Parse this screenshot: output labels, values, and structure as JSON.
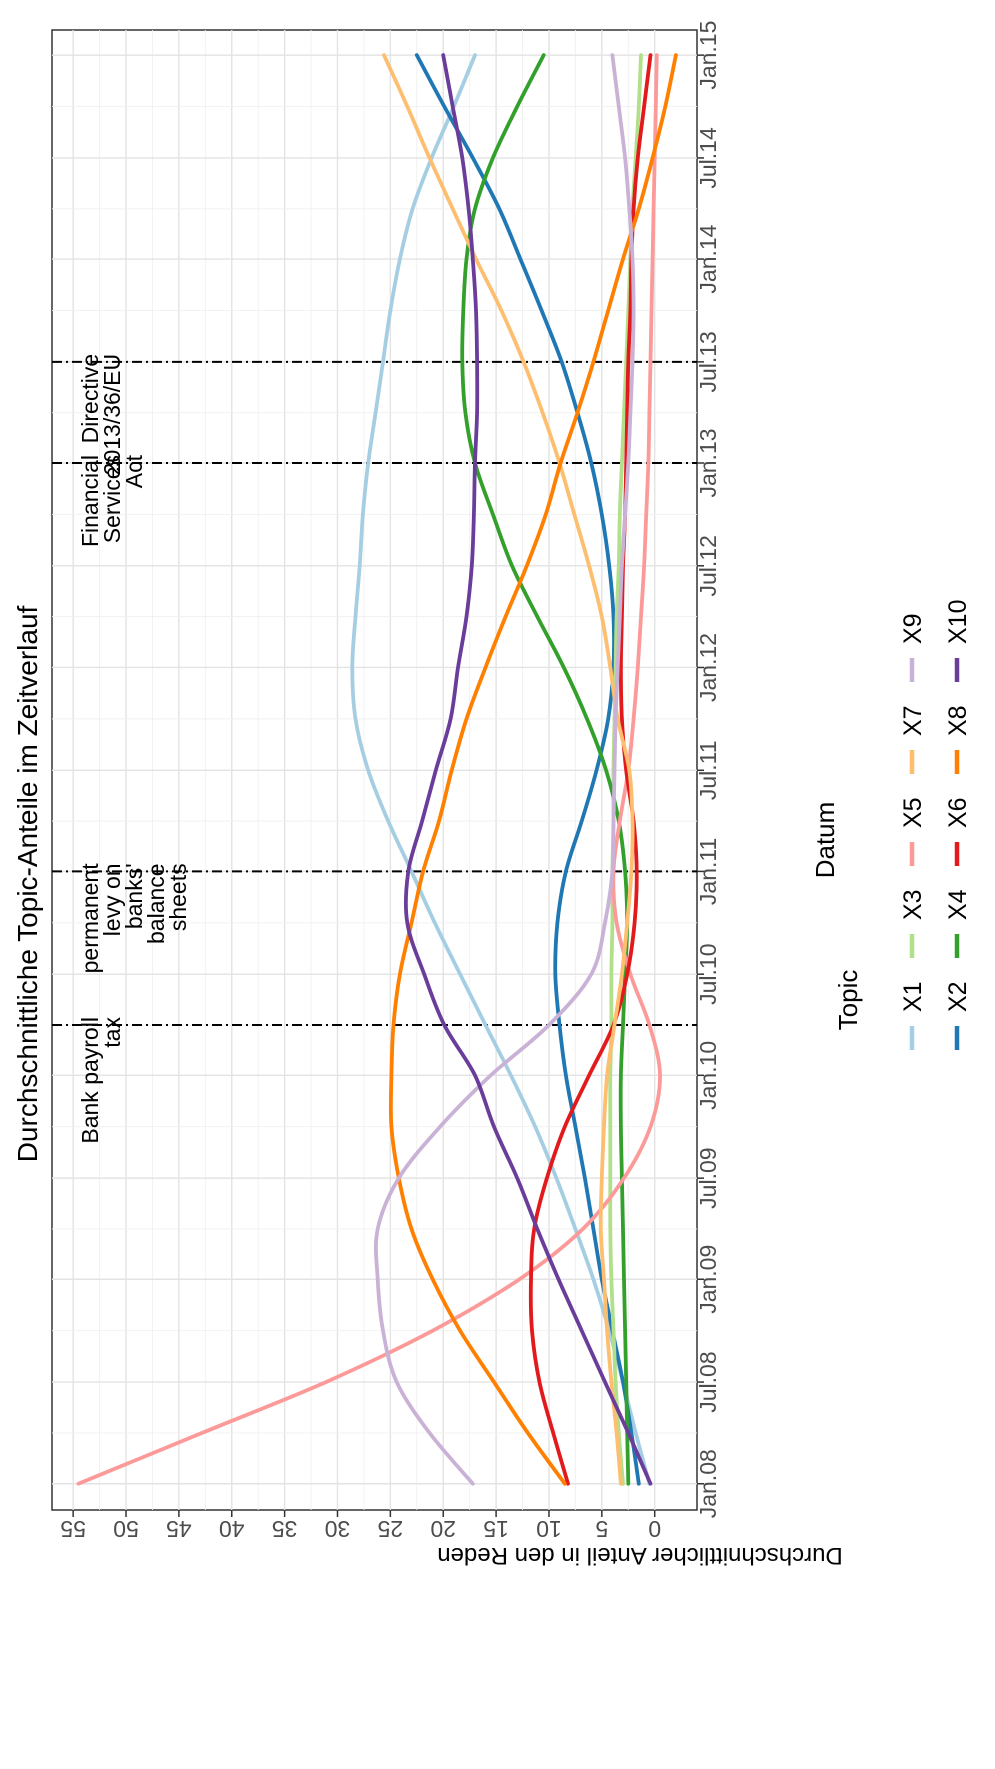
{
  "chart_data": {
    "type": "line",
    "title": "Durchschnittliche Topic-Anteile im Zeitverlauf",
    "xlabel": "Datum",
    "ylabel": "Durchschnittlicher Anteil in den Reden",
    "xlim": [
      "2007-11-15",
      "2015-02-15"
    ],
    "ylim": [
      -4,
      57
    ],
    "y_ticks": [
      0,
      5,
      10,
      15,
      20,
      25,
      30,
      35,
      40,
      45,
      50,
      55
    ],
    "y_tick_labels": [
      "0",
      "5",
      "10",
      "15",
      "20",
      "25",
      "30",
      "35",
      "40",
      "45",
      "50",
      "55"
    ],
    "x_ticks": [
      "2008-01-01",
      "2008-07-01",
      "2009-01-01",
      "2009-07-01",
      "2010-01-01",
      "2010-07-01",
      "2011-01-01",
      "2011-07-01",
      "2012-01-01",
      "2012-07-01",
      "2013-01-01",
      "2013-07-01",
      "2014-01-01",
      "2014-07-01",
      "2015-01-01"
    ],
    "x_tick_labels": [
      "Jan.08",
      "Jul.08",
      "Jan.09",
      "Jul.09",
      "Jan.10",
      "Jul.10",
      "Jan.11",
      "Jul.11",
      "Jan.12",
      "Jul.12",
      "Jan.13",
      "Jul.13",
      "Jan.14",
      "Jul.14",
      "Jan.15"
    ],
    "grid": true,
    "orientation": "rotated 90 degrees counter-clockwise",
    "legend": {
      "title": "Topic",
      "placement": "bottom",
      "items": [
        {
          "label": "X1",
          "color": "#a6cee3"
        },
        {
          "label": "X2",
          "color": "#1f78b4"
        },
        {
          "label": "X3",
          "color": "#b2df8a"
        },
        {
          "label": "X4",
          "color": "#33a02c"
        },
        {
          "label": "X5",
          "color": "#fb9a99"
        },
        {
          "label": "X6",
          "color": "#e31a1c"
        },
        {
          "label": "X7",
          "color": "#fdbf6f"
        },
        {
          "label": "X8",
          "color": "#ff7f00"
        },
        {
          "label": "X9",
          "color": "#cab2d6"
        },
        {
          "label": "X10",
          "color": "#6a3d9a"
        }
      ]
    },
    "events": [
      {
        "date": "2010-04-01",
        "label": "Bank payroll tax",
        "lines": [
          "Bank payroll",
          "tax"
        ]
      },
      {
        "date": "2011-01-01",
        "label": "permanent levy on banks' balance sheets",
        "lines": [
          "permanent",
          "levy on",
          "banks'",
          "balance",
          "sheets"
        ]
      },
      {
        "date": "2013-01-01",
        "label": "Financial Services Act",
        "lines": [
          "Financial",
          "Services",
          "Act"
        ]
      },
      {
        "date": "2013-07-01",
        "label": "Directive 2013/36/EU",
        "lines": [
          "Directive",
          "2013/36/EU"
        ]
      }
    ],
    "x": [
      "2008-01-01",
      "2008-04-01",
      "2008-07-01",
      "2008-10-01",
      "2009-01-01",
      "2009-04-01",
      "2009-07-01",
      "2009-10-01",
      "2010-01-01",
      "2010-04-01",
      "2010-07-01",
      "2010-10-01",
      "2011-01-01",
      "2011-04-01",
      "2011-07-01",
      "2011-10-01",
      "2012-01-01",
      "2012-04-01",
      "2012-07-01",
      "2012-10-01",
      "2013-01-01",
      "2013-04-01",
      "2013-07-01",
      "2013-10-01",
      "2014-01-01",
      "2014-04-01",
      "2014-07-01",
      "2014-10-01",
      "2015-01-01"
    ],
    "series": [
      {
        "name": "X1",
        "color": "#a6cee3",
        "values": [
          0.5,
          1.8,
          3.0,
          4.3,
          5.8,
          7.5,
          9.3,
          11.3,
          13.6,
          16.0,
          18.4,
          20.8,
          23.0,
          25.2,
          27.1,
          28.3,
          28.6,
          28.3,
          27.9,
          27.6,
          27.1,
          26.4,
          25.7,
          25.0,
          24.1,
          22.9,
          21.1,
          19.0,
          17.0
        ]
      },
      {
        "name": "X2",
        "color": "#1f78b4",
        "values": [
          1.5,
          2.2,
          3.0,
          4.0,
          5.0,
          5.8,
          6.6,
          7.5,
          8.4,
          9.0,
          9.4,
          9.2,
          8.4,
          6.9,
          5.5,
          4.4,
          3.9,
          3.9,
          4.3,
          5.0,
          6.0,
          7.3,
          8.8,
          10.7,
          12.7,
          14.7,
          17.2,
          19.9,
          22.5
        ]
      },
      {
        "name": "X3",
        "color": "#b2df8a",
        "values": [
          3.0,
          3.4,
          3.7,
          3.9,
          4.1,
          4.2,
          4.2,
          4.2,
          4.2,
          4.1,
          4.1,
          4.0,
          4.0,
          3.9,
          3.9,
          3.8,
          3.7,
          3.6,
          3.4,
          3.3,
          3.1,
          2.9,
          2.7,
          2.5,
          2.3,
          2.1,
          1.8,
          1.5,
          1.3
        ]
      },
      {
        "name": "X4",
        "color": "#33a02c",
        "values": [
          2.5,
          2.6,
          2.7,
          2.8,
          2.9,
          3.0,
          3.1,
          3.2,
          3.2,
          3.0,
          2.8,
          2.6,
          2.8,
          3.4,
          4.6,
          6.4,
          8.6,
          11.1,
          13.5,
          15.3,
          17.0,
          17.9,
          18.2,
          18.1,
          17.8,
          17.0,
          15.3,
          13.0,
          10.5
        ]
      },
      {
        "name": "X5",
        "color": "#fb9a99",
        "values": [
          54.5,
          42.8,
          31.1,
          21.0,
          12.8,
          6.8,
          2.9,
          0.4,
          -0.5,
          0.5,
          2.3,
          3.6,
          3.9,
          3.3,
          2.5,
          2.0,
          1.6,
          1.3,
          1.0,
          0.8,
          0.6,
          0.5,
          0.4,
          0.3,
          0.2,
          0.1,
          0.0,
          -0.1,
          -0.2
        ]
      },
      {
        "name": "X6",
        "color": "#e31a1c",
        "values": [
          8.2,
          9.6,
          10.9,
          11.6,
          11.7,
          11.4,
          10.2,
          8.5,
          6.2,
          3.9,
          2.6,
          1.9,
          1.7,
          2.0,
          2.7,
          3.1,
          3.2,
          3.1,
          3.0,
          2.8,
          2.7,
          2.6,
          2.5,
          2.3,
          2.2,
          2.0,
          1.6,
          1.0,
          0.4
        ]
      },
      {
        "name": "X7",
        "color": "#fdbf6f",
        "values": [
          3.2,
          3.6,
          4.1,
          4.5,
          4.8,
          5.1,
          5.0,
          4.8,
          4.5,
          3.8,
          3.1,
          2.6,
          2.2,
          2.1,
          2.4,
          3.5,
          4.2,
          5.0,
          6.2,
          7.6,
          9.0,
          10.6,
          12.4,
          14.5,
          16.9,
          19.1,
          21.3,
          23.4,
          25.6
        ]
      },
      {
        "name": "X8",
        "color": "#ff7f00",
        "values": [
          8.5,
          12.0,
          15.2,
          18.4,
          21.0,
          23.0,
          24.2,
          24.9,
          24.9,
          24.7,
          24.1,
          23.0,
          21.9,
          20.4,
          19.2,
          17.8,
          16.0,
          14.1,
          12.1,
          10.3,
          8.9,
          7.3,
          5.8,
          4.4,
          3.0,
          1.5,
          0.2,
          -1.0,
          -2.0
        ]
      },
      {
        "name": "X9",
        "color": "#cab2d6",
        "values": [
          17.2,
          21.3,
          24.4,
          25.7,
          26.2,
          26.2,
          24.2,
          20.3,
          15.5,
          10.0,
          6.0,
          4.7,
          4.0,
          3.9,
          3.8,
          3.7,
          3.5,
          3.3,
          3.1,
          2.8,
          2.5,
          2.3,
          2.1,
          2.0,
          2.1,
          2.4,
          2.8,
          3.4,
          4.0
        ]
      },
      {
        "name": "X10",
        "color": "#6a3d9a",
        "values": [
          0.4,
          2.5,
          4.7,
          6.9,
          9.1,
          11.1,
          13.0,
          15.2,
          17.0,
          19.9,
          21.8,
          23.4,
          23.3,
          22.0,
          20.7,
          19.3,
          18.6,
          17.8,
          17.3,
          17.1,
          17.0,
          16.8,
          16.8,
          16.9,
          17.2,
          17.6,
          18.2,
          19.1,
          20.0
        ]
      }
    ]
  }
}
